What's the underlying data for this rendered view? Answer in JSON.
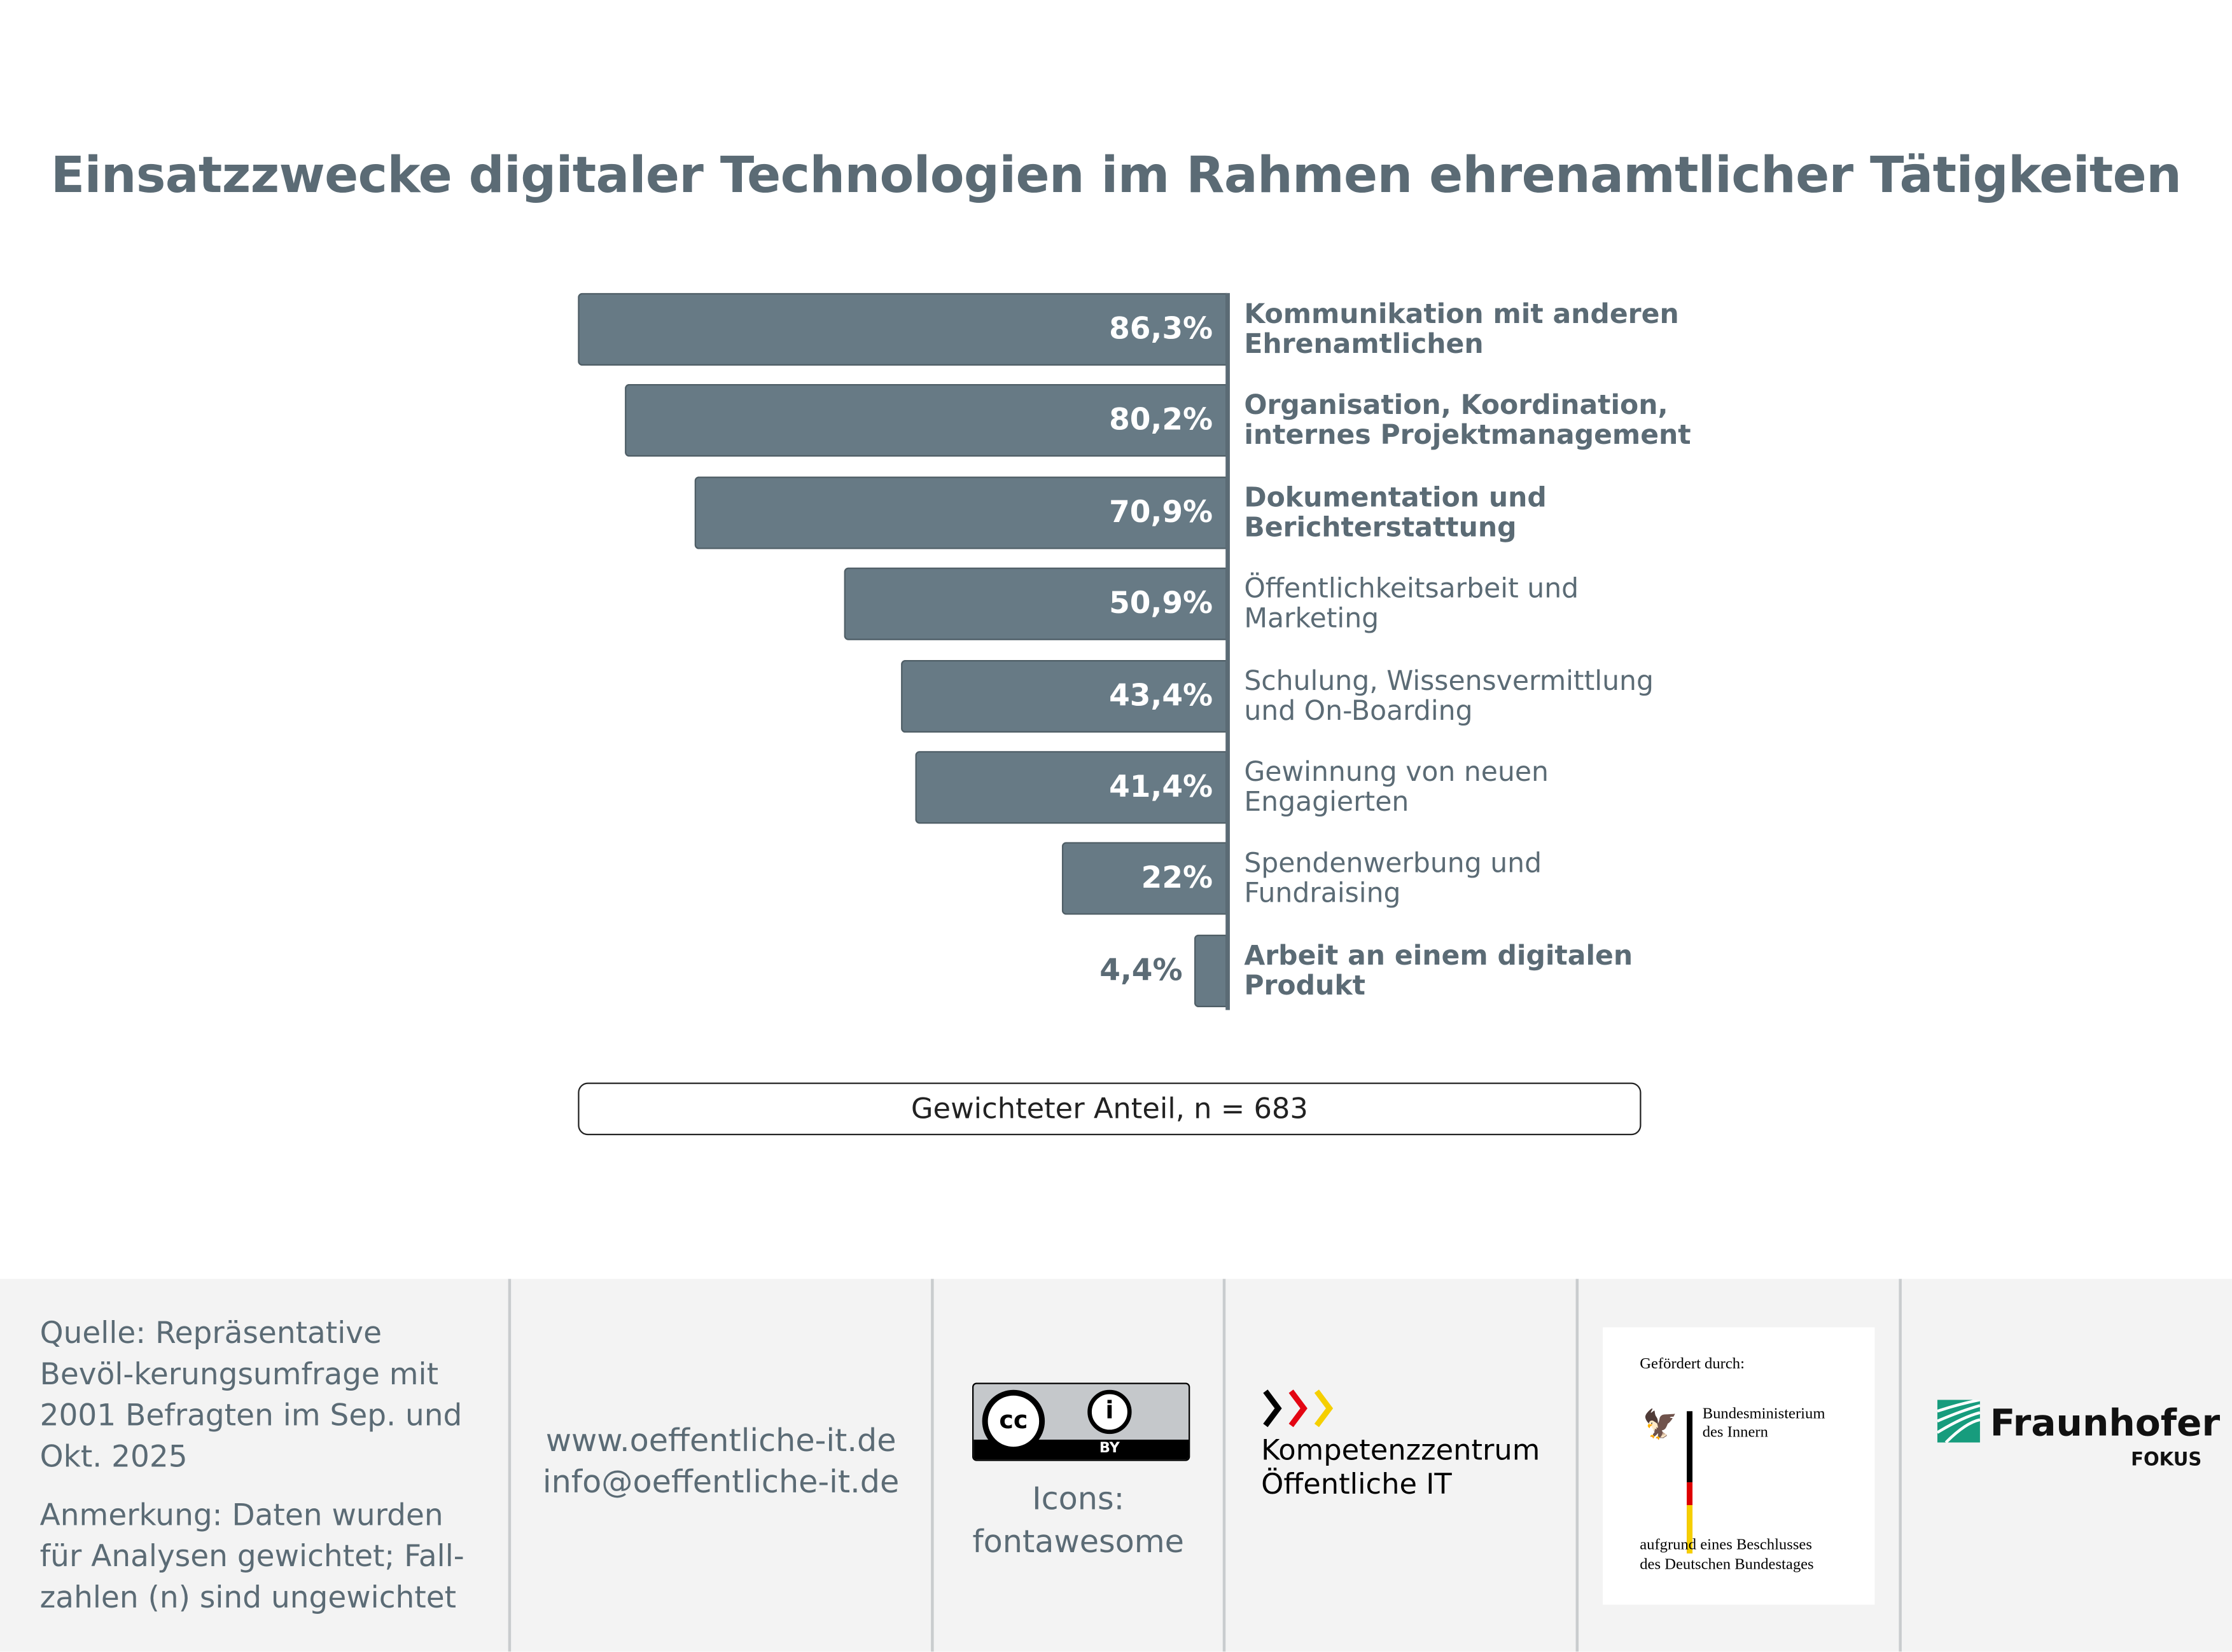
{
  "chart_data": {
    "type": "bar",
    "orientation": "horizontal",
    "title": "Einsatzzwecke digitaler Technologien im Rahmen ehrenamtlicher Tätigkeiten",
    "categories": [
      "Kommunikation mit anderen Ehrenamtlichen",
      "Organisation, Koordination, internes Projektmanagement",
      "Dokumentation und Berichterstattung",
      "Öffentlichkeitsarbeit und Marketing",
      "Schulung, Wissensvermittlung und On-Boarding",
      "Gewinnung von neuen Engagierten",
      "Spendenwerbung und Fundraising",
      "Arbeit an einem digitalen Produkt"
    ],
    "values": [
      86.3,
      80.2,
      70.9,
      50.9,
      43.4,
      41.4,
      22,
      4.4
    ],
    "value_labels": [
      "86,3%",
      "80,2%",
      "70,9%",
      "50,9%",
      "43,4%",
      "41,4%",
      "22%",
      "4,4%"
    ],
    "bold": [
      true,
      true,
      true,
      false,
      false,
      false,
      false,
      true
    ],
    "xlim": [
      0,
      100
    ],
    "note": "Gewichteter Anteil, n = 683",
    "bar_color": "#677a85"
  },
  "footer": {
    "source": "Quelle: Repräsentative Bevöl-kerungsumfrage mit 2001 Befragten im Sep. und Okt. 2025",
    "remark": "Anmerkung: Daten wurden für Analysen gewichtet; Fall-zahlen (n) sind ungewichtet",
    "website": "www.oeffentliche-it.de",
    "email": "info@oeffentliche-it.de",
    "license": "BY",
    "icons_credit_1": "Icons:",
    "icons_credit_2": "fontawesome",
    "kompetenz_1": "Kompetenzzentrum",
    "kompetenz_2": "Öffentliche IT",
    "funded_by": "Gefördert durch:",
    "ministry_1": "Bundesministerium",
    "ministry_2": "des Innern",
    "decision_1": "aufgrund eines Beschlusses",
    "decision_2": "des Deutschen Bundestages",
    "fraunhofer": "Fraunhofer",
    "fokus": "FOKUS"
  }
}
